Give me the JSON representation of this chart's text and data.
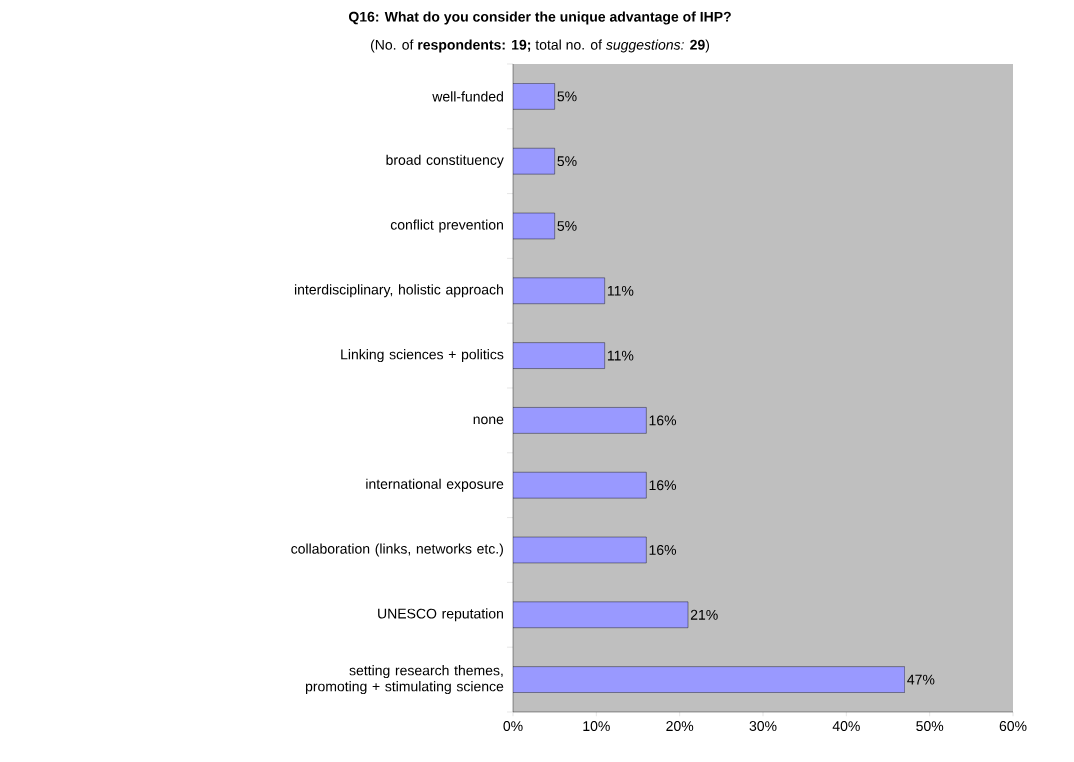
{
  "chart_data": {
    "type": "bar",
    "orientation": "horizontal",
    "title": "Q16: What do you consider the unique advantage of IHP?",
    "subtitle": "(No. of **respondents: 19;** total no. of *suggestions:* **29**)",
    "categories": [
      "well-funded",
      "broad constituency",
      "conflict prevention",
      "interdisciplinary, holistic approach",
      "Linking sciences + politics",
      "none",
      "international exposure",
      "collaboration (links, networks etc.)",
      "UNESCO reputation",
      "setting research themes, promoting + stimulating science"
    ],
    "values": [
      5,
      5,
      5,
      11,
      11,
      16,
      16,
      16,
      21,
      47
    ],
    "value_labels": [
      "5%",
      "5%",
      "5%",
      "11%",
      "11%",
      "16%",
      "16%",
      "16%",
      "21%",
      "47%"
    ],
    "color": "#9999ff",
    "xlim": [
      0,
      60
    ],
    "xticks": [
      {
        "value": 0,
        "label": "0%"
      },
      {
        "value": 10,
        "label": "10%"
      },
      {
        "value": 20,
        "label": "20%"
      },
      {
        "value": 30,
        "label": "30%"
      },
      {
        "value": 40,
        "label": "40%"
      },
      {
        "value": 50,
        "label": "50%"
      },
      {
        "value": 60,
        "label": "60%"
      }
    ],
    "grid": false
  }
}
